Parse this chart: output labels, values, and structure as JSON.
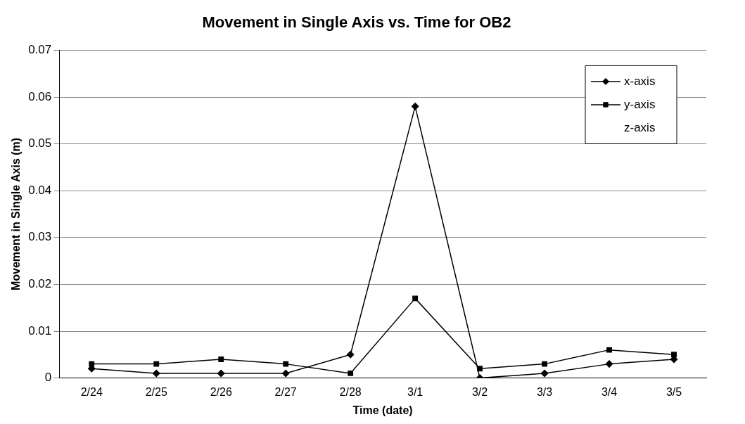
{
  "chart_data": {
    "type": "line",
    "title": "Movement in Single Axis vs. Time for OB2",
    "xlabel": "Time (date)",
    "ylabel": "Movement in Single Axis (m)",
    "categories": [
      "2/24",
      "2/25",
      "2/26",
      "2/27",
      "2/28",
      "3/1",
      "3/2",
      "3/3",
      "3/4",
      "3/5"
    ],
    "series": [
      {
        "name": "x-axis",
        "color": "#000000",
        "marker": "diamond",
        "values": [
          0.002,
          0.001,
          0.001,
          0.001,
          0.005,
          0.058,
          0,
          0.001,
          0.003,
          0.004
        ]
      },
      {
        "name": "y-axis",
        "color": "#000000",
        "marker": "square",
        "values": [
          0.003,
          0.003,
          0.004,
          0.003,
          0.001,
          0.017,
          0.002,
          0.003,
          0.006,
          0.005
        ]
      },
      {
        "name": "z-axis",
        "marker": "triangle",
        "values": [
          null,
          null,
          null,
          null,
          null,
          null,
          null,
          null,
          null,
          null
        ]
      }
    ],
    "ylim": [
      0,
      0.07
    ],
    "yticks": [
      0,
      0.01,
      0.02,
      0.03,
      0.04,
      0.05,
      0.06,
      0.07
    ],
    "grid": "y",
    "legend": "top right"
  }
}
